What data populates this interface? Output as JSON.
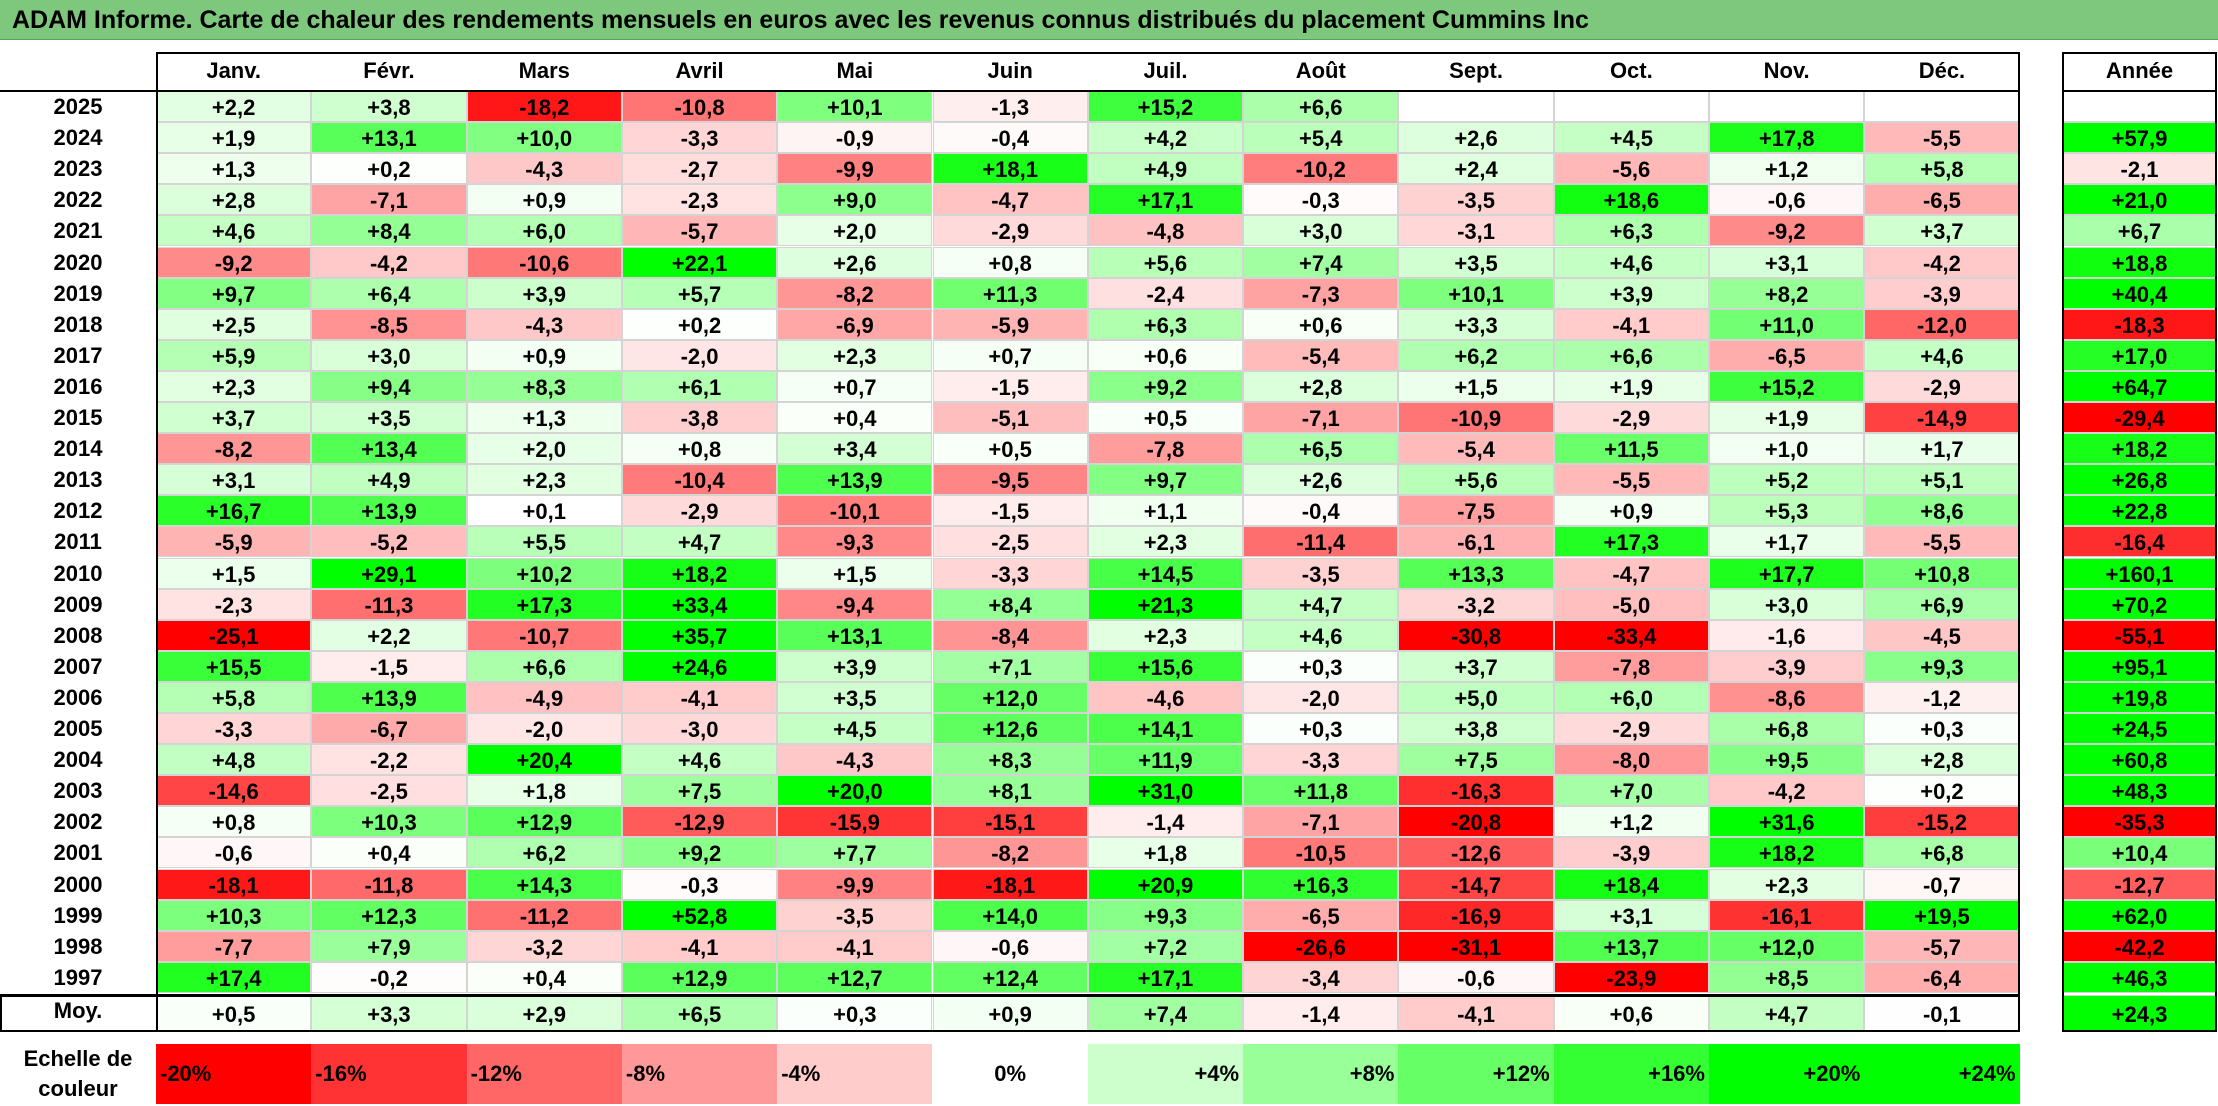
{
  "title": "ADAM Informe. Carte de chaleur des rendements mensuels en euros avec les revenus connus distribués du placement Cummins Inc",
  "colors": {
    "title_bar": "#7ec87e",
    "negative_max": "#ff0000",
    "neutral": "#ffffff",
    "positive_max": "#00ff00"
  },
  "scale_label": "Echelle de couleur",
  "color_scale": {
    "labels": [
      "-20%",
      "-16%",
      "-12%",
      "-8%",
      "-4%",
      "0%",
      "+4%",
      "+8%",
      "+12%",
      "+16%",
      "+20%",
      "+24%"
    ],
    "values": [
      -20,
      -16,
      -12,
      -8,
      -4,
      0,
      4,
      8,
      12,
      16,
      20,
      24
    ]
  },
  "chart_data": {
    "type": "heatmap",
    "title": "ADAM Informe. Carte de chaleur des rendements mensuels en euros avec les revenus connus distribués du placement Cummins Inc",
    "columns": [
      "Janv.",
      "Févr.",
      "Mars",
      "Avril",
      "Mai",
      "Juin",
      "Juil.",
      "Août",
      "Sept.",
      "Oct.",
      "Nov.",
      "Déc."
    ],
    "annual_header": "Année",
    "rows": [
      {
        "label": "2025",
        "values": [
          "+2,2",
          "+3,8",
          "-18,2",
          "-10,8",
          "+10,1",
          "-1,3",
          "+15,2",
          "+6,6",
          "",
          "",
          "",
          ""
        ],
        "annual": ""
      },
      {
        "label": "2024",
        "values": [
          "+1,9",
          "+13,1",
          "+10,0",
          "-3,3",
          "-0,9",
          "-0,4",
          "+4,2",
          "+5,4",
          "+2,6",
          "+4,5",
          "+17,8",
          "-5,5"
        ],
        "annual": "+57,9"
      },
      {
        "label": "2023",
        "values": [
          "+1,3",
          "+0,2",
          "-4,3",
          "-2,7",
          "-9,9",
          "+18,1",
          "+4,9",
          "-10,2",
          "+2,4",
          "-5,6",
          "+1,2",
          "+5,8"
        ],
        "annual": "-2,1"
      },
      {
        "label": "2022",
        "values": [
          "+2,8",
          "-7,1",
          "+0,9",
          "-2,3",
          "+9,0",
          "-4,7",
          "+17,1",
          "-0,3",
          "-3,5",
          "+18,6",
          "-0,6",
          "-6,5"
        ],
        "annual": "+21,0"
      },
      {
        "label": "2021",
        "values": [
          "+4,6",
          "+8,4",
          "+6,0",
          "-5,7",
          "+2,0",
          "-2,9",
          "-4,8",
          "+3,0",
          "-3,1",
          "+6,3",
          "-9,2",
          "+3,7"
        ],
        "annual": "+6,7"
      },
      {
        "label": "2020",
        "values": [
          "-9,2",
          "-4,2",
          "-10,6",
          "+22,1",
          "+2,6",
          "+0,8",
          "+5,6",
          "+7,4",
          "+3,5",
          "+4,6",
          "+3,1",
          "-4,2"
        ],
        "annual": "+18,8"
      },
      {
        "label": "2019",
        "values": [
          "+9,7",
          "+6,4",
          "+3,9",
          "+5,7",
          "-8,2",
          "+11,3",
          "-2,4",
          "-7,3",
          "+10,1",
          "+3,9",
          "+8,2",
          "-3,9"
        ],
        "annual": "+40,4"
      },
      {
        "label": "2018",
        "values": [
          "+2,5",
          "-8,5",
          "-4,3",
          "+0,2",
          "-6,9",
          "-5,9",
          "+6,3",
          "+0,6",
          "+3,3",
          "-4,1",
          "+11,0",
          "-12,0"
        ],
        "annual": "-18,3"
      },
      {
        "label": "2017",
        "values": [
          "+5,9",
          "+3,0",
          "+0,9",
          "-2,0",
          "+2,3",
          "+0,7",
          "+0,6",
          "-5,4",
          "+6,2",
          "+6,6",
          "-6,5",
          "+4,6"
        ],
        "annual": "+17,0"
      },
      {
        "label": "2016",
        "values": [
          "+2,3",
          "+9,4",
          "+8,3",
          "+6,1",
          "+0,7",
          "-1,5",
          "+9,2",
          "+2,8",
          "+1,5",
          "+1,9",
          "+15,2",
          "-2,9"
        ],
        "annual": "+64,7"
      },
      {
        "label": "2015",
        "values": [
          "+3,7",
          "+3,5",
          "+1,3",
          "-3,8",
          "+0,4",
          "-5,1",
          "+0,5",
          "-7,1",
          "-10,9",
          "-2,9",
          "+1,9",
          "-14,9"
        ],
        "annual": "-29,4"
      },
      {
        "label": "2014",
        "values": [
          "-8,2",
          "+13,4",
          "+2,0",
          "+0,8",
          "+3,4",
          "+0,5",
          "-7,8",
          "+6,5",
          "-5,4",
          "+11,5",
          "+1,0",
          "+1,7"
        ],
        "annual": "+18,2"
      },
      {
        "label": "2013",
        "values": [
          "+3,1",
          "+4,9",
          "+2,3",
          "-10,4",
          "+13,9",
          "-9,5",
          "+9,7",
          "+2,6",
          "+5,6",
          "-5,5",
          "+5,2",
          "+5,1"
        ],
        "annual": "+26,8"
      },
      {
        "label": "2012",
        "values": [
          "+16,7",
          "+13,9",
          "+0,1",
          "-2,9",
          "-10,1",
          "-1,5",
          "+1,1",
          "-0,4",
          "-7,5",
          "+0,9",
          "+5,3",
          "+8,6"
        ],
        "annual": "+22,8"
      },
      {
        "label": "2011",
        "values": [
          "-5,9",
          "-5,2",
          "+5,5",
          "+4,7",
          "-9,3",
          "-2,5",
          "+2,3",
          "-11,4",
          "-6,1",
          "+17,3",
          "+1,7",
          "-5,5"
        ],
        "annual": "-16,4"
      },
      {
        "label": "2010",
        "values": [
          "+1,5",
          "+29,1",
          "+10,2",
          "+18,2",
          "+1,5",
          "-3,3",
          "+14,5",
          "-3,5",
          "+13,3",
          "-4,7",
          "+17,7",
          "+10,8"
        ],
        "annual": "+160,1"
      },
      {
        "label": "2009",
        "values": [
          "-2,3",
          "-11,3",
          "+17,3",
          "+33,4",
          "-9,4",
          "+8,4",
          "+21,3",
          "+4,7",
          "-3,2",
          "-5,0",
          "+3,0",
          "+6,9"
        ],
        "annual": "+70,2"
      },
      {
        "label": "2008",
        "values": [
          "-25,1",
          "+2,2",
          "-10,7",
          "+35,7",
          "+13,1",
          "-8,4",
          "+2,3",
          "+4,6",
          "-30,8",
          "-33,4",
          "-1,6",
          "-4,5"
        ],
        "annual": "-55,1"
      },
      {
        "label": "2007",
        "values": [
          "+15,5",
          "-1,5",
          "+6,6",
          "+24,6",
          "+3,9",
          "+7,1",
          "+15,6",
          "+0,3",
          "+3,7",
          "-7,8",
          "-3,9",
          "+9,3"
        ],
        "annual": "+95,1"
      },
      {
        "label": "2006",
        "values": [
          "+5,8",
          "+13,9",
          "-4,9",
          "-4,1",
          "+3,5",
          "+12,0",
          "-4,6",
          "-2,0",
          "+5,0",
          "+6,0",
          "-8,6",
          "-1,2"
        ],
        "annual": "+19,8"
      },
      {
        "label": "2005",
        "values": [
          "-3,3",
          "-6,7",
          "-2,0",
          "-3,0",
          "+4,5",
          "+12,6",
          "+14,1",
          "+0,3",
          "+3,8",
          "-2,9",
          "+6,8",
          "+0,3"
        ],
        "annual": "+24,5"
      },
      {
        "label": "2004",
        "values": [
          "+4,8",
          "-2,2",
          "+20,4",
          "+4,6",
          "-4,3",
          "+8,3",
          "+11,9",
          "-3,3",
          "+7,5",
          "-8,0",
          "+9,5",
          "+2,8"
        ],
        "annual": "+60,8"
      },
      {
        "label": "2003",
        "values": [
          "-14,6",
          "-2,5",
          "+1,8",
          "+7,5",
          "+20,0",
          "+8,1",
          "+31,0",
          "+11,8",
          "-16,3",
          "+7,0",
          "-4,2",
          "+0,2"
        ],
        "annual": "+48,3"
      },
      {
        "label": "2002",
        "values": [
          "+0,8",
          "+10,3",
          "+12,9",
          "-12,9",
          "-15,9",
          "-15,1",
          "-1,4",
          "-7,1",
          "-20,8",
          "+1,2",
          "+31,6",
          "-15,2"
        ],
        "annual": "-35,3"
      },
      {
        "label": "2001",
        "values": [
          "-0,6",
          "+0,4",
          "+6,2",
          "+9,2",
          "+7,7",
          "-8,2",
          "+1,8",
          "-10,5",
          "-12,6",
          "-3,9",
          "+18,2",
          "+6,8"
        ],
        "annual": "+10,4"
      },
      {
        "label": "2000",
        "values": [
          "-18,1",
          "-11,8",
          "+14,3",
          "-0,3",
          "-9,9",
          "-18,1",
          "+20,9",
          "+16,3",
          "-14,7",
          "+18,4",
          "+2,3",
          "-0,7"
        ],
        "annual": "-12,7"
      },
      {
        "label": "1999",
        "values": [
          "+10,3",
          "+12,3",
          "-11,2",
          "+52,8",
          "-3,5",
          "+14,0",
          "+9,3",
          "-6,5",
          "-16,9",
          "+3,1",
          "-16,1",
          "+19,5"
        ],
        "annual": "+62,0"
      },
      {
        "label": "1998",
        "values": [
          "-7,7",
          "+7,9",
          "-3,2",
          "-4,1",
          "-4,1",
          "-0,6",
          "+7,2",
          "-26,6",
          "-31,1",
          "+13,7",
          "+12,0",
          "-5,7"
        ],
        "annual": "-42,2"
      },
      {
        "label": "1997",
        "values": [
          "+17,4",
          "-0,2",
          "+0,4",
          "+12,9",
          "+12,7",
          "+12,4",
          "+17,1",
          "-3,4",
          "-0,6",
          "-23,9",
          "+8,5",
          "-6,4"
        ],
        "annual": "+46,3"
      }
    ],
    "average": {
      "label": "Moy.",
      "values": [
        "+0,5",
        "+3,3",
        "+2,9",
        "+6,5",
        "+0,3",
        "+0,9",
        "+7,4",
        "-1,4",
        "-4,1",
        "+0,6",
        "+4,7",
        "-0,1"
      ],
      "annual": "+24,3"
    },
    "color_range": [
      -20,
      24
    ]
  }
}
